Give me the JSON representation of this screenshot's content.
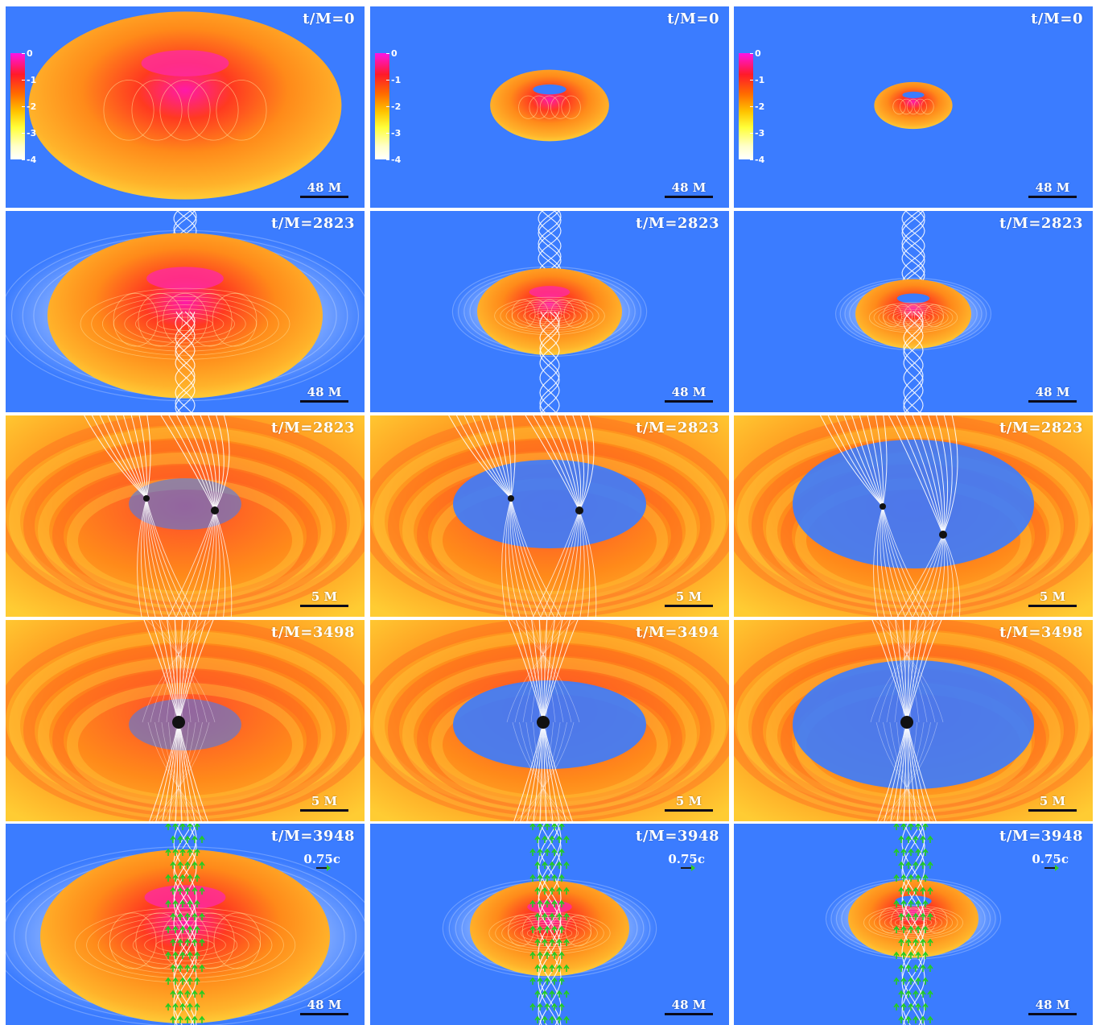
{
  "figure": {
    "background": "#3b7cff",
    "columns": 3,
    "rows": [
      {
        "kind": "initial",
        "labels": [
          "t/M=0",
          "t/M=0",
          "t/M=0"
        ],
        "scale": [
          "48 M",
          "48 M",
          "48 M"
        ]
      },
      {
        "kind": "large",
        "labels": [
          "t/M=2823",
          "t/M=2823",
          "t/M=2823"
        ],
        "scale": [
          "48 M",
          "48 M",
          "48 M"
        ]
      },
      {
        "kind": "zoom-binary",
        "labels": [
          "t/M=2823",
          "t/M=2823",
          "t/M=2823"
        ],
        "scale": [
          "5 M",
          "5 M",
          "5 M"
        ]
      },
      {
        "kind": "zoom-merged",
        "labels": [
          "t/M=3498",
          "t/M=3494",
          "t/M=3498"
        ],
        "scale": [
          "5 M",
          "5 M",
          "5 M"
        ]
      },
      {
        "kind": "jet",
        "labels": [
          "t/M=3948",
          "t/M=3948",
          "t/M=3948"
        ],
        "scale": [
          "48 M",
          "48 M",
          "48 M"
        ],
        "velocity_label": "0.75c"
      }
    ],
    "colorbar": {
      "ticks": [
        "0",
        "-1",
        "-2",
        "-3",
        "-4"
      ]
    },
    "colors": {
      "magenta": "#ff14e6",
      "red": "#ff1a2a",
      "orange": "#ff7a1a",
      "yellow": "#ffe600",
      "white": "#ffffff",
      "green": "#22cc22",
      "black": "#111111"
    }
  }
}
